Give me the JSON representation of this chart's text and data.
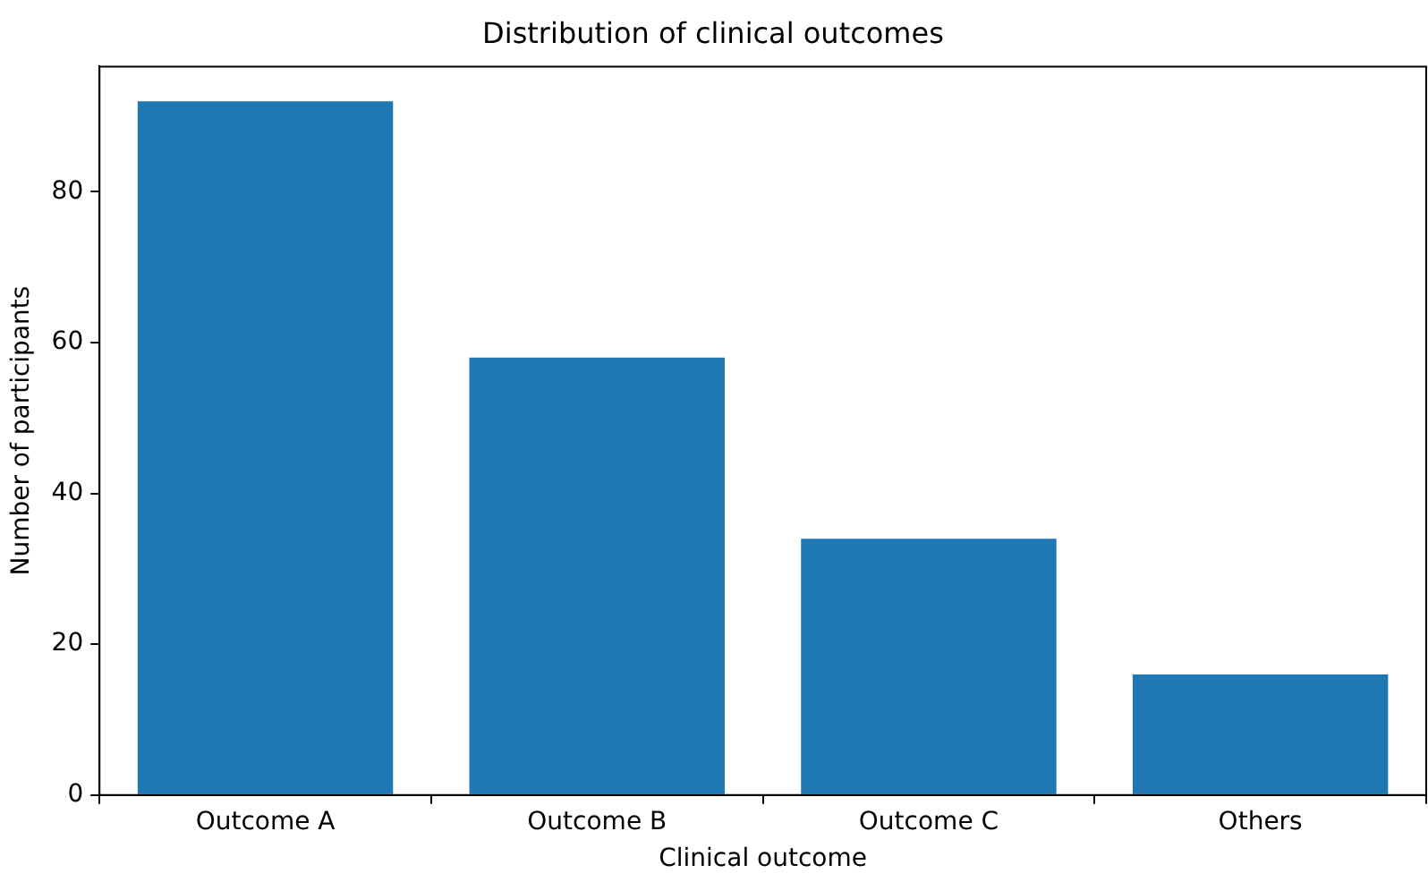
{
  "chart_data": {
    "type": "bar",
    "title": "Distribution of clinical outcomes",
    "xlabel": "Clinical outcome",
    "ylabel": "Number of participants",
    "categories": [
      "Outcome A",
      "Outcome B",
      "Outcome C",
      "Others"
    ],
    "values": [
      92,
      58,
      34,
      16
    ],
    "color": "#1f77b4",
    "ylim": [
      0,
      96.6
    ],
    "yticks": [
      0,
      20,
      40,
      60,
      80
    ],
    "grid": false,
    "legend": false
  }
}
